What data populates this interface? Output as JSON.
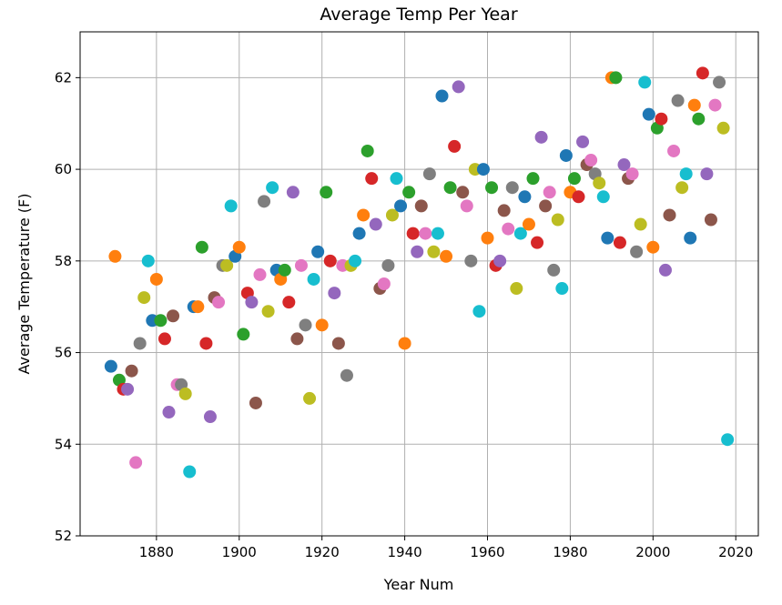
{
  "chart_data": {
    "type": "scatter",
    "title": "Average Temp Per Year",
    "xlabel": "Year Num",
    "ylabel": "Average Temperature (F)",
    "xlim": [
      1861.55,
      2025.45
    ],
    "ylim": [
      52,
      63
    ],
    "xticks": [
      1880,
      1900,
      1920,
      1940,
      1960,
      1980,
      2000,
      2020
    ],
    "yticks": [
      52,
      54,
      56,
      58,
      60,
      62
    ],
    "grid": true,
    "color_cycle": [
      "#1f77b4",
      "#ff7f0e",
      "#2ca02c",
      "#d62728",
      "#9467bd",
      "#8c564b",
      "#e377c2",
      "#7f7f7f",
      "#bcbd22",
      "#17becf"
    ],
    "x_start": 1869,
    "y": [
      55.7,
      58.1,
      55.4,
      55.2,
      55.2,
      55.6,
      53.6,
      56.2,
      57.2,
      58.0,
      56.7,
      57.6,
      56.7,
      56.3,
      54.7,
      56.8,
      55.3,
      55.3,
      55.1,
      53.4,
      57.0,
      57.0,
      58.3,
      56.2,
      54.6,
      57.2,
      57.1,
      57.9,
      57.9,
      59.2,
      58.1,
      58.3,
      56.4,
      57.3,
      57.1,
      54.9,
      57.7,
      59.3,
      56.9,
      59.6,
      57.8,
      57.6,
      57.8,
      57.1,
      59.5,
      56.3,
      57.9,
      56.6,
      55.0,
      57.6,
      58.2,
      56.6,
      59.5,
      58.0,
      57.3,
      56.2,
      57.9,
      55.5,
      57.9,
      58.0,
      58.6,
      59.0,
      60.4,
      59.8,
      58.8,
      57.4,
      57.5,
      57.9,
      59.0,
      59.8,
      59.2,
      56.2,
      59.5,
      58.6,
      58.2,
      59.2,
      58.6,
      59.9,
      58.2,
      58.6,
      61.6,
      58.1,
      59.6,
      60.5,
      61.8,
      59.5,
      59.2,
      58.0,
      60.0,
      56.9,
      60.0,
      58.5,
      59.6,
      57.9,
      58.0,
      59.1,
      58.7,
      59.6,
      57.4,
      58.6,
      59.4,
      58.8,
      59.8,
      58.4,
      60.7,
      59.2,
      59.5,
      57.8,
      58.9,
      57.4,
      60.3,
      59.5,
      59.8,
      59.4,
      60.6,
      60.1,
      60.2,
      59.9,
      59.7,
      59.4,
      58.5,
      62.0,
      62.0,
      58.4,
      60.1,
      59.8,
      59.9,
      58.2,
      58.8,
      61.9,
      61.2,
      58.3,
      60.9,
      61.1,
      57.8,
      59.0,
      60.4,
      61.5,
      59.6,
      59.9,
      58.5,
      61.4,
      61.1,
      62.1,
      59.9,
      58.9,
      61.4,
      61.9,
      60.9,
      54.1
    ]
  }
}
